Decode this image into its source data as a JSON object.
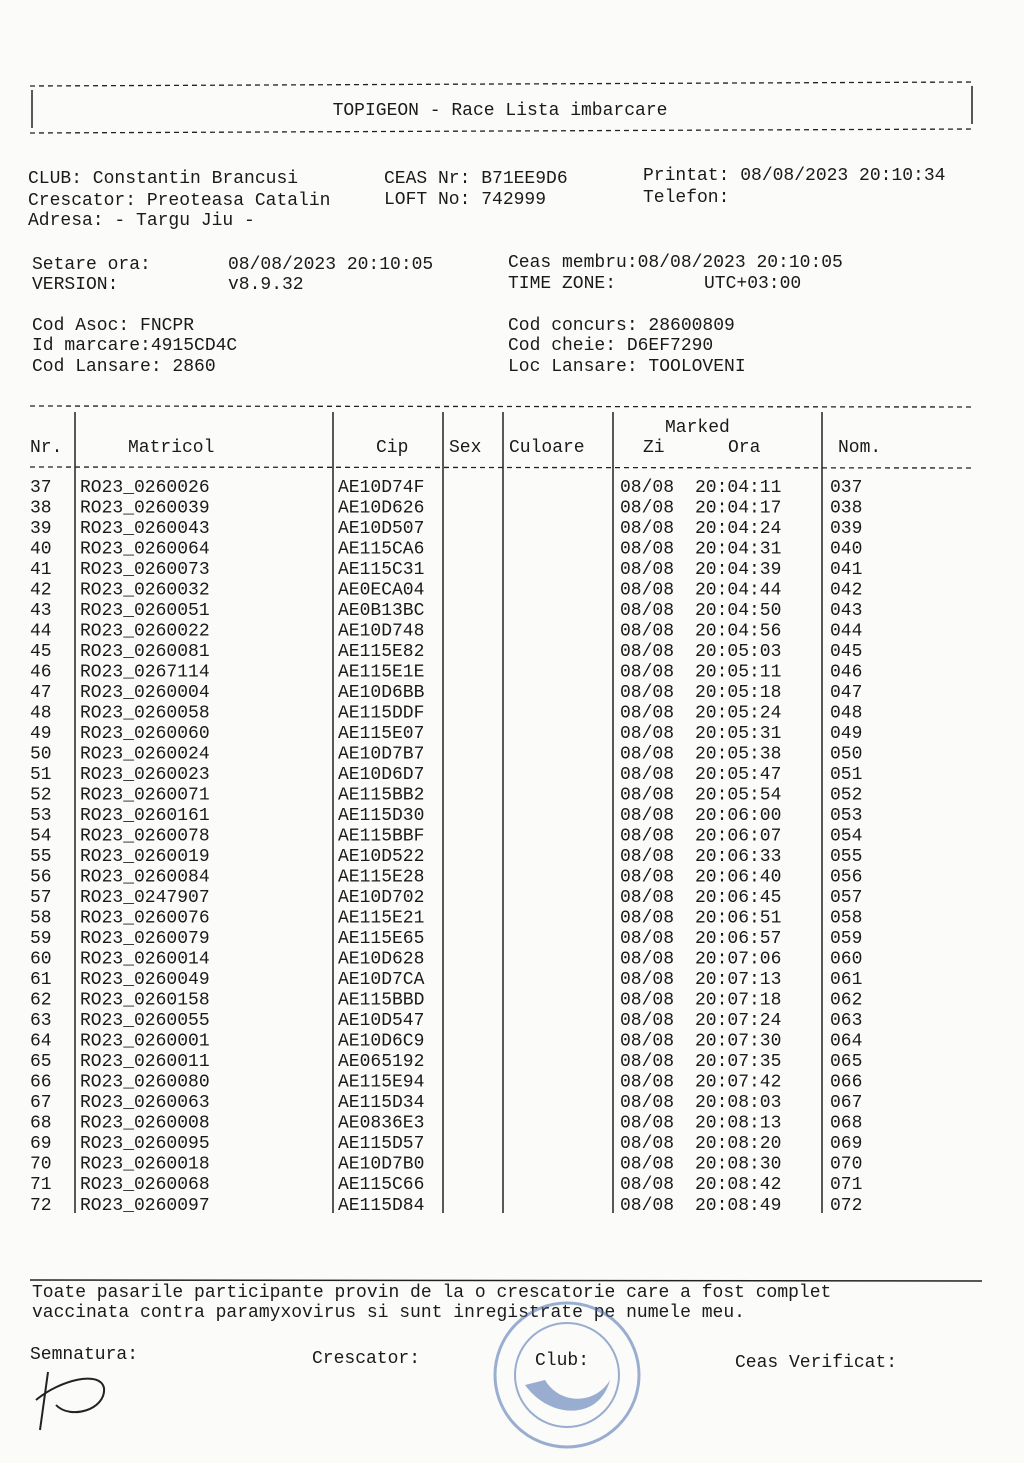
{
  "header": {
    "title": "TOPIGEON  -  Race Lista imbarcare"
  },
  "info": {
    "club": "CLUB: Constantin Brancusi",
    "ceas": "CEAS Nr: B71EE9D6",
    "printat": "Printat: 08/08/2023 20:10:34",
    "crescator": "Crescator: Preoteasa Catalin",
    "loft": "LOFT No: 742999",
    "telefon": "Telefon:",
    "adresa": "Adresa: - Targu Jiu -",
    "setare_label": "Setare ora:",
    "setare": "08/08/2023 20:10:05",
    "ceas_membru": "Ceas membru:08/08/2023 20:10:05",
    "version_label": "VERSION:",
    "version": "v8.9.32",
    "timezone_label": "TIME ZONE:",
    "timezone": "UTC+03:00",
    "cod_asoc": "Cod Asoc: FNCPR",
    "id_marcare": "Id marcare:4915CD4C",
    "cod_lansare": "Cod Lansare: 2860",
    "cod_concurs": "Cod concurs: 28600809",
    "cod_cheie": "Cod cheie: D6EF7290",
    "loc_lansare": "Loc Lansare: TOOLOVENI"
  },
  "table": {
    "marked": "Marked",
    "columns": [
      "Nr.",
      "Matricol",
      "Cip",
      "Sex",
      "Culoare",
      "Zi",
      "Ora",
      "Nom."
    ],
    "rows": [
      [
        "37",
        "RO23_0260026",
        "AE10D74F",
        "08/08",
        "20:04:11",
        "037"
      ],
      [
        "38",
        "RO23_0260039",
        "AE10D626",
        "08/08",
        "20:04:17",
        "038"
      ],
      [
        "39",
        "RO23_0260043",
        "AE10D507",
        "08/08",
        "20:04:24",
        "039"
      ],
      [
        "40",
        "RO23_0260064",
        "AE115CA6",
        "08/08",
        "20:04:31",
        "040"
      ],
      [
        "41",
        "RO23_0260073",
        "AE115C31",
        "08/08",
        "20:04:39",
        "041"
      ],
      [
        "42",
        "RO23_0260032",
        "AE0ECA04",
        "08/08",
        "20:04:44",
        "042"
      ],
      [
        "43",
        "RO23_0260051",
        "AE0B13BC",
        "08/08",
        "20:04:50",
        "043"
      ],
      [
        "44",
        "RO23_0260022",
        "AE10D748",
        "08/08",
        "20:04:56",
        "044"
      ],
      [
        "45",
        "RO23_0260081",
        "AE115E82",
        "08/08",
        "20:05:03",
        "045"
      ],
      [
        "46",
        "RO23_0267114",
        "AE115E1E",
        "08/08",
        "20:05:11",
        "046"
      ],
      [
        "47",
        "RO23_0260004",
        "AE10D6BB",
        "08/08",
        "20:05:18",
        "047"
      ],
      [
        "48",
        "RO23_0260058",
        "AE115DDF",
        "08/08",
        "20:05:24",
        "048"
      ],
      [
        "49",
        "RO23_0260060",
        "AE115E07",
        "08/08",
        "20:05:31",
        "049"
      ],
      [
        "50",
        "RO23_0260024",
        "AE10D7B7",
        "08/08",
        "20:05:38",
        "050"
      ],
      [
        "51",
        "RO23_0260023",
        "AE10D6D7",
        "08/08",
        "20:05:47",
        "051"
      ],
      [
        "52",
        "RO23_0260071",
        "AE115BB2",
        "08/08",
        "20:05:54",
        "052"
      ],
      [
        "53",
        "RO23_0260161",
        "AE115D30",
        "08/08",
        "20:06:00",
        "053"
      ],
      [
        "54",
        "RO23_0260078",
        "AE115BBF",
        "08/08",
        "20:06:07",
        "054"
      ],
      [
        "55",
        "RO23_0260019",
        "AE10D522",
        "08/08",
        "20:06:33",
        "055"
      ],
      [
        "56",
        "RO23_0260084",
        "AE115E28",
        "08/08",
        "20:06:40",
        "056"
      ],
      [
        "57",
        "RO23_0247907",
        "AE10D702",
        "08/08",
        "20:06:45",
        "057"
      ],
      [
        "58",
        "RO23_0260076",
        "AE115E21",
        "08/08",
        "20:06:51",
        "058"
      ],
      [
        "59",
        "RO23_0260079",
        "AE115E65",
        "08/08",
        "20:06:57",
        "059"
      ],
      [
        "60",
        "RO23_0260014",
        "AE10D628",
        "08/08",
        "20:07:06",
        "060"
      ],
      [
        "61",
        "RO23_0260049",
        "AE10D7CA",
        "08/08",
        "20:07:13",
        "061"
      ],
      [
        "62",
        "RO23_0260158",
        "AE115BBD",
        "08/08",
        "20:07:18",
        "062"
      ],
      [
        "63",
        "RO23_0260055",
        "AE10D547",
        "08/08",
        "20:07:24",
        "063"
      ],
      [
        "64",
        "RO23_0260001",
        "AE10D6C9",
        "08/08",
        "20:07:30",
        "064"
      ],
      [
        "65",
        "RO23_0260011",
        "AE065192",
        "08/08",
        "20:07:35",
        "065"
      ],
      [
        "66",
        "RO23_0260080",
        "AE115E94",
        "08/08",
        "20:07:42",
        "066"
      ],
      [
        "67",
        "RO23_0260063",
        "AE115D34",
        "08/08",
        "20:08:03",
        "067"
      ],
      [
        "68",
        "RO23_0260008",
        "AE0836E3",
        "08/08",
        "20:08:13",
        "068"
      ],
      [
        "69",
        "RO23_0260095",
        "AE115D57",
        "08/08",
        "20:08:20",
        "069"
      ],
      [
        "70",
        "RO23_0260018",
        "AE10D7B0",
        "08/08",
        "20:08:30",
        "070"
      ],
      [
        "71",
        "RO23_0260068",
        "AE115C66",
        "08/08",
        "20:08:42",
        "071"
      ],
      [
        "72",
        "RO23_0260097",
        "AE115D84",
        "08/08",
        "20:08:49",
        "072"
      ]
    ]
  },
  "footer": {
    "declaration": [
      "Toate pasarile participante provin de la o crescatorie care a fost complet",
      "vaccinata contra paramyxovirus si sunt inregistrate pe numele meu."
    ],
    "semnatura": "Semnatura:",
    "crescator": "Crescator:",
    "club": "Club:",
    "ceas_verificat": "Ceas Verificat:"
  }
}
